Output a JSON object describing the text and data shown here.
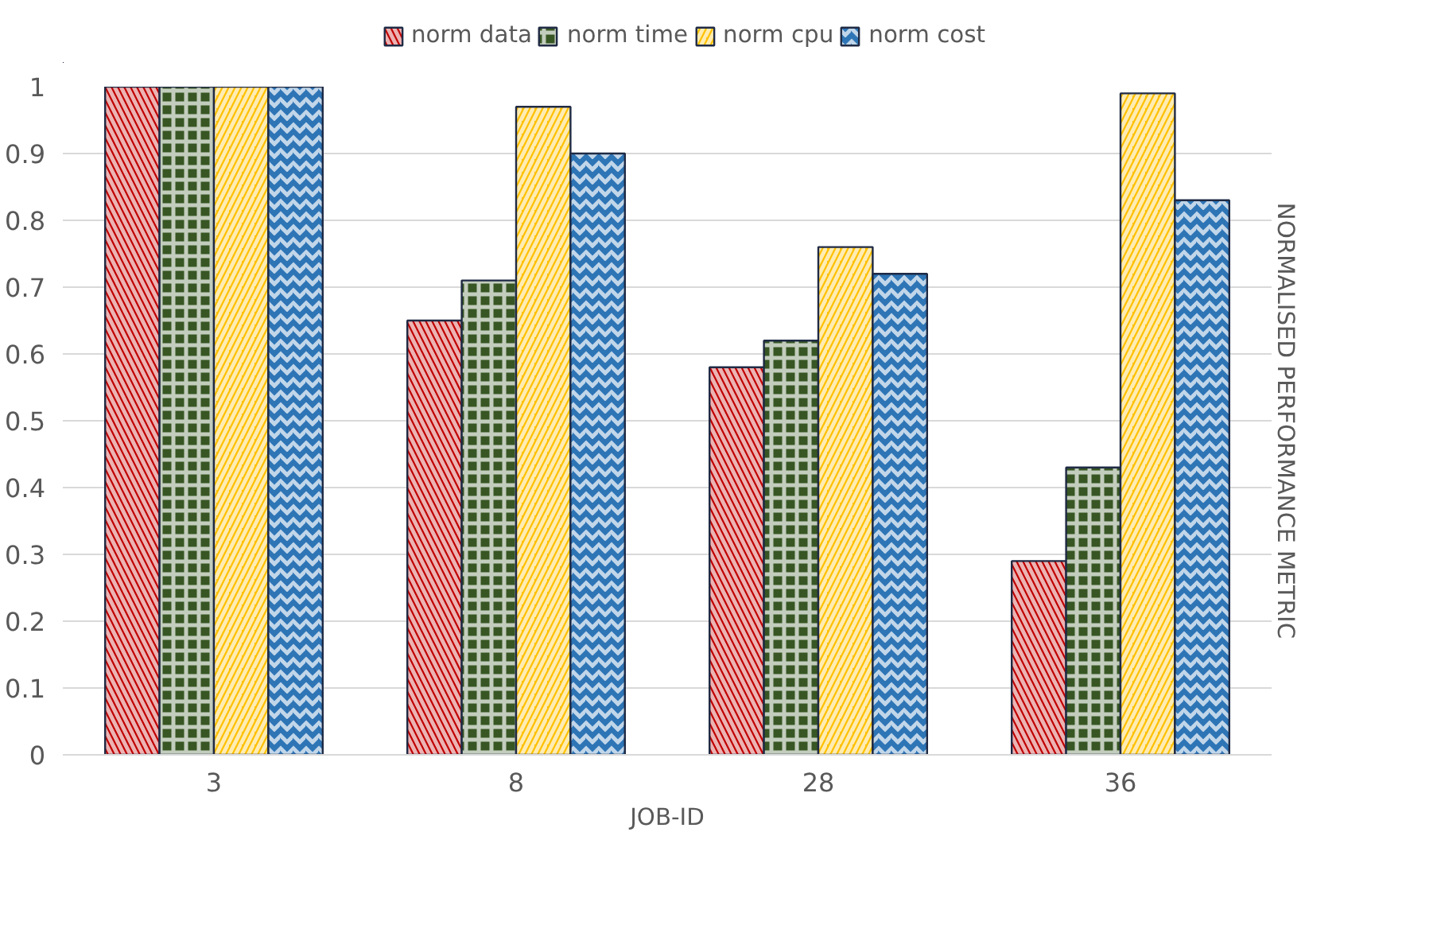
{
  "chart_data": {
    "type": "bar",
    "xlabel": "JOB-ID",
    "ylabel": "NORMALISED PERFORMANCE METRIC",
    "categories": [
      "3",
      "8",
      "28",
      "36"
    ],
    "series": [
      {
        "name": "norm data",
        "color": "#c00000",
        "values": [
          1,
          0.65,
          0.58,
          0.29
        ]
      },
      {
        "name": "norm time",
        "color": "#375623",
        "values": [
          1,
          0.71,
          0.62,
          0.43
        ]
      },
      {
        "name": "norm cpu",
        "color": "#ffc000",
        "values": [
          1,
          0.97,
          0.76,
          0.99
        ]
      },
      {
        "name": "norm cost",
        "color": "#2e75b6",
        "values": [
          1,
          0.9,
          0.72,
          0.83
        ]
      }
    ],
    "ylim": [
      0,
      1
    ],
    "yticks": [
      0,
      0.1,
      0.2,
      0.3,
      0.4,
      0.5,
      0.6,
      0.7,
      0.8,
      0.9,
      1
    ],
    "grid": "y",
    "legend": "top"
  }
}
